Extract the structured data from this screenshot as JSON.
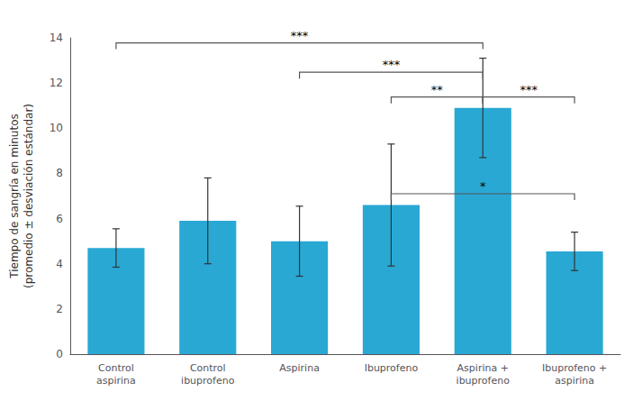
{
  "chart_data": {
    "type": "bar",
    "categories": [
      "Control\naspirina",
      "Control\nibuprofeno",
      "Aspirina",
      "Ibuprofeno",
      "Aspirina +\nibuprofeno",
      "Ibuprofeno +\naspirina"
    ],
    "values": [
      4.7,
      5.9,
      5.0,
      6.6,
      10.9,
      4.55
    ],
    "errors": [
      0.85,
      1.9,
      1.55,
      2.7,
      2.2,
      0.85
    ],
    "color": "#29A8D4",
    "ylabel": "Tiempo de sangría en minutos\n(promedio ± desviación estándar)",
    "ylim": [
      0,
      14
    ],
    "yticks": [
      0,
      2,
      4,
      6,
      8,
      10,
      12,
      14
    ],
    "grid": false,
    "annotations": [
      {
        "text": "***",
        "from": "Control\naspirina",
        "to": "Aspirina +\nibuprofeno",
        "y": 13.5,
        "style": "open_top",
        "color": "#555555"
      },
      {
        "text": "***",
        "from": "Aspirina",
        "to": "Aspirina +\nibuprofeno",
        "y": 12.2,
        "style": "open_top",
        "color": "#555555"
      },
      {
        "text": "**",
        "from": "Ibuprofeno",
        "to": "Aspirina +\nibuprofeno",
        "y": 11.1,
        "style": "open_top",
        "color": "#555555"
      },
      {
        "text": "***",
        "from": "Aspirina +\nibuprofeno",
        "to": "Ibuprofeno +\naspirina",
        "y": 11.1,
        "style": "open_top",
        "color": "#555555"
      },
      {
        "text": "*",
        "from": "Ibuprofeno",
        "to": "Ibuprofeno +\naspirina",
        "y": 7.1,
        "style": "flat_ticks",
        "color": "#555555"
      }
    ]
  }
}
